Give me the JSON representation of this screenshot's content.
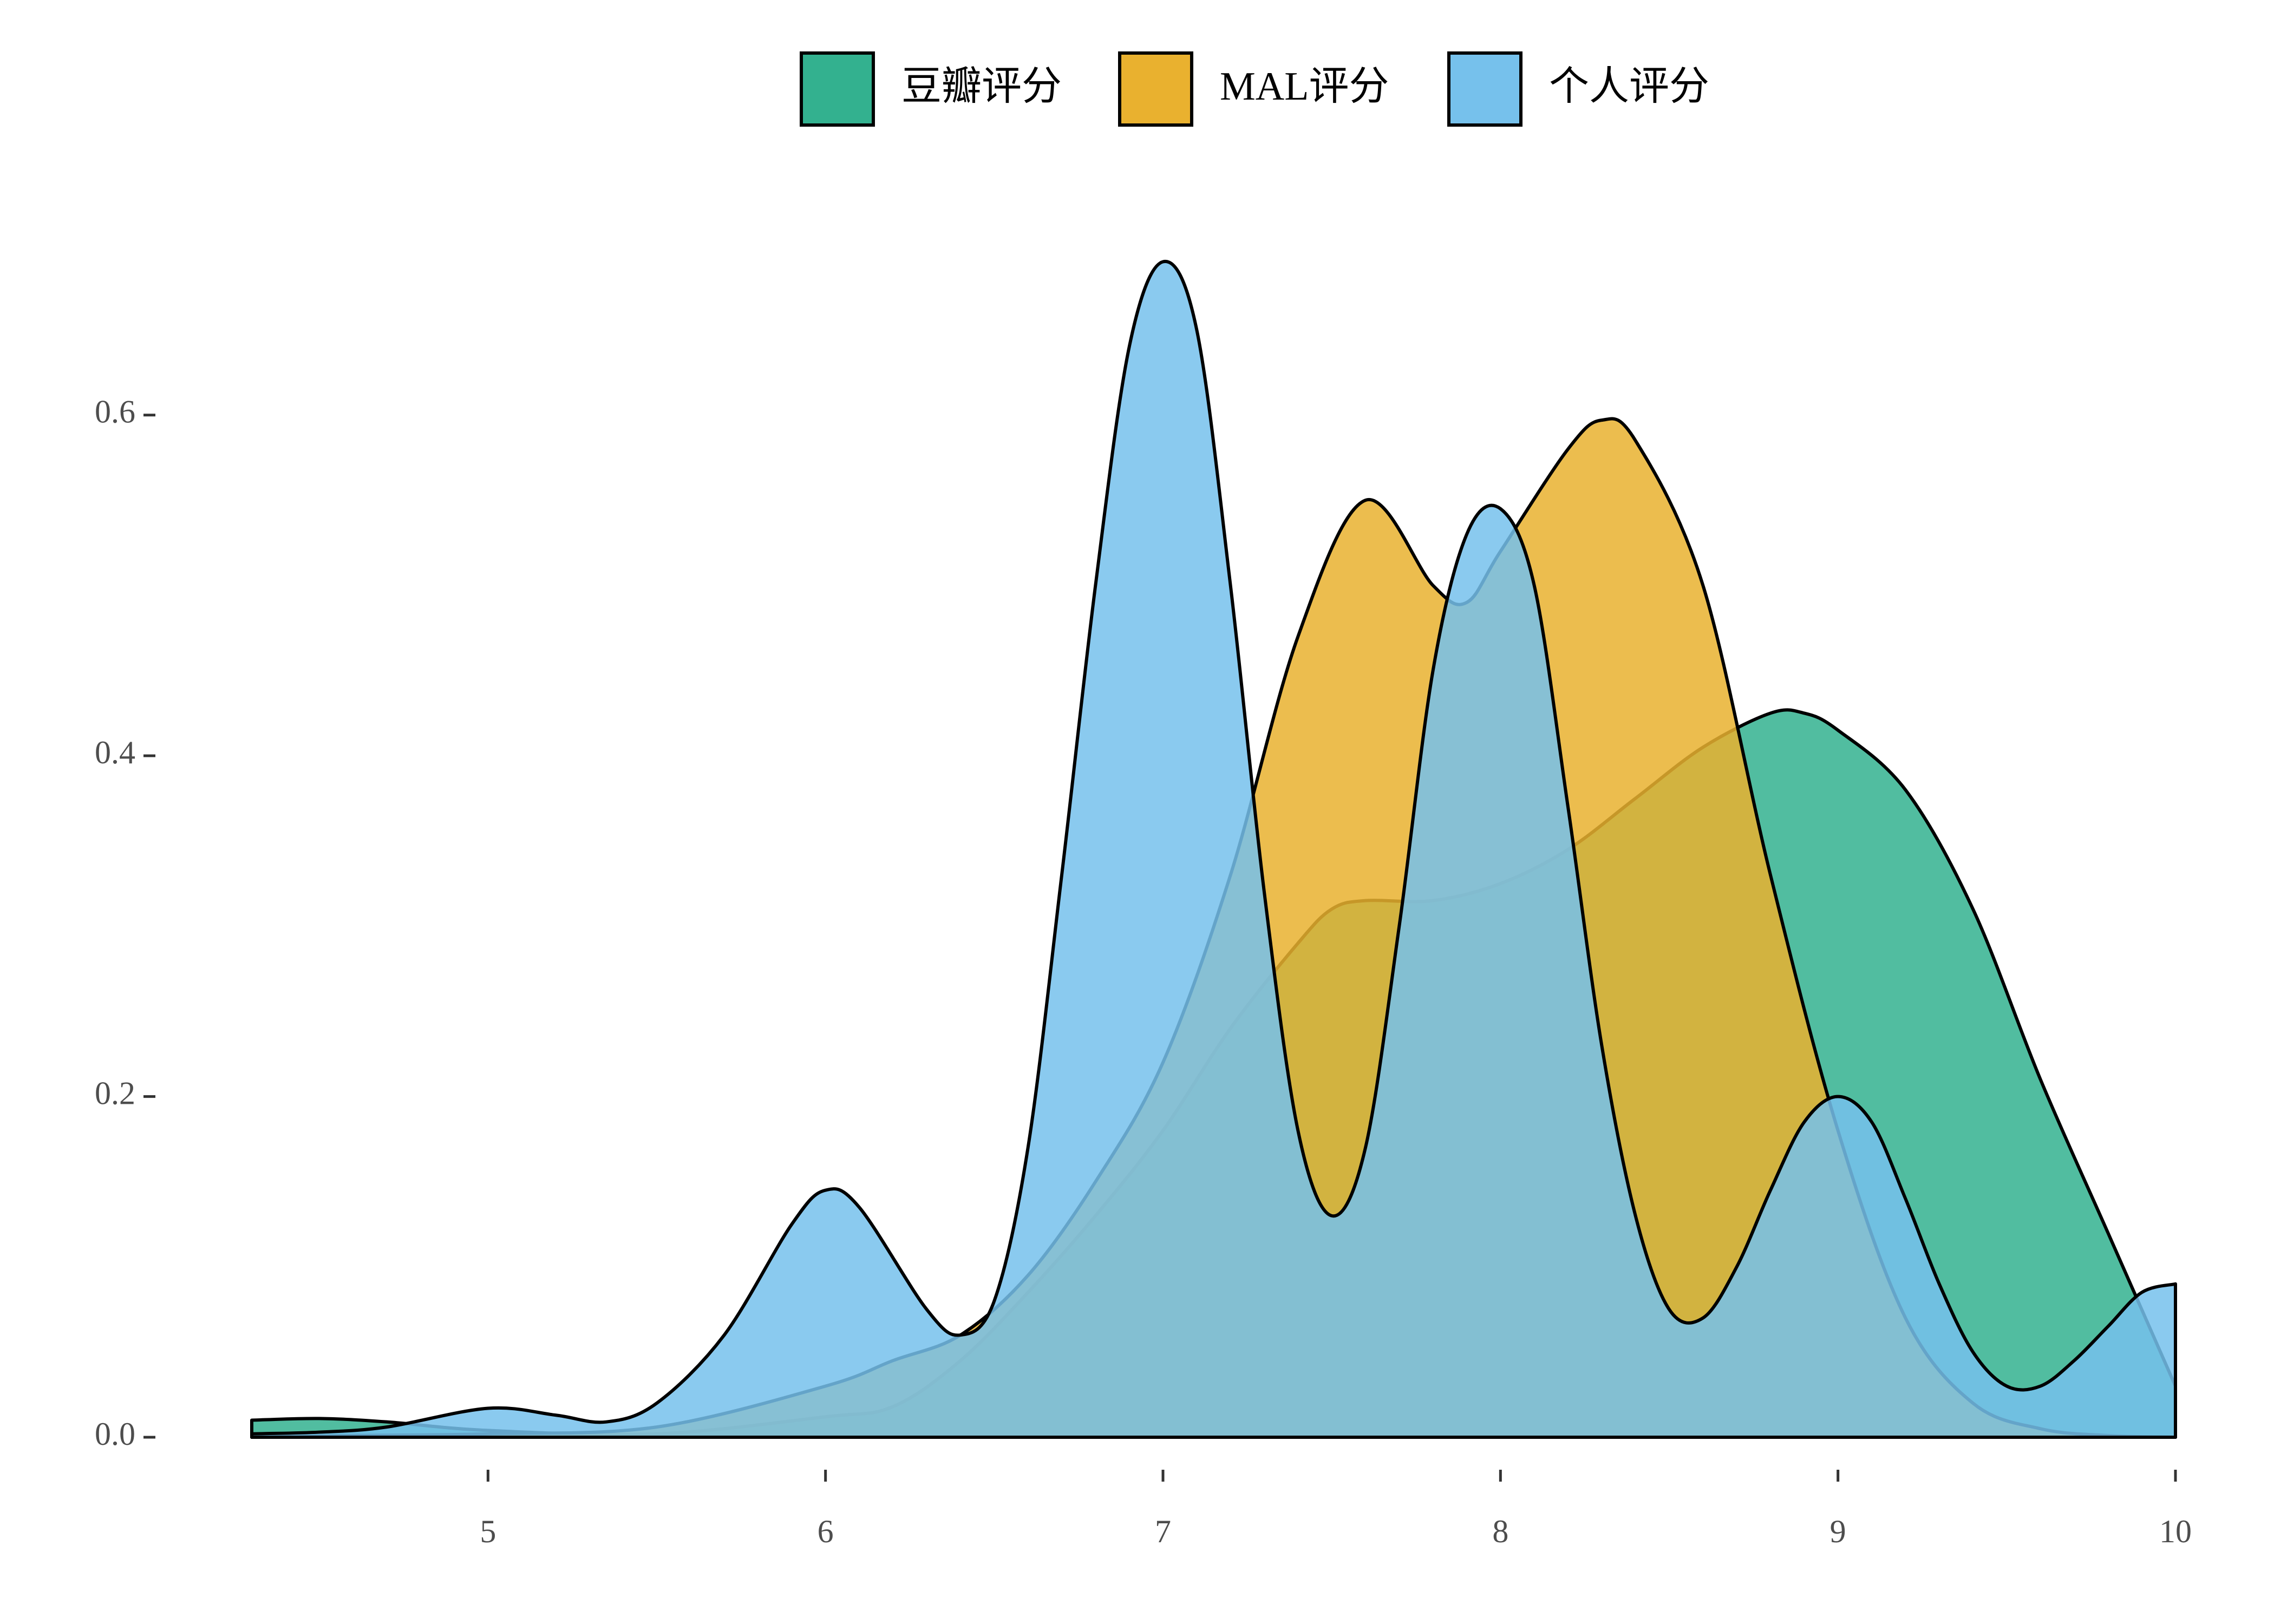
{
  "chart_data": {
    "type": "density",
    "series": [
      {
        "name": "豆瓣评分",
        "color": "#33b18f",
        "x": [
          4.3,
          4.5,
          4.7,
          5.0,
          5.5,
          6.0,
          6.2,
          6.4,
          6.6,
          6.8,
          7.0,
          7.2,
          7.4,
          7.5,
          7.6,
          7.8,
          8.0,
          8.2,
          8.4,
          8.6,
          8.8,
          8.9,
          9.0,
          9.2,
          9.4,
          9.6,
          9.8,
          10.0
        ],
        "values": [
          0.01,
          0.011,
          0.009,
          0.004,
          0.002,
          0.012,
          0.018,
          0.045,
          0.085,
          0.13,
          0.18,
          0.24,
          0.29,
          0.31,
          0.315,
          0.315,
          0.325,
          0.345,
          0.375,
          0.405,
          0.425,
          0.425,
          0.415,
          0.38,
          0.31,
          0.21,
          0.12,
          0.03
        ]
      },
      {
        "name": "MAL评分",
        "color": "#e9b12f",
        "x": [
          4.3,
          4.6,
          5.0,
          5.5,
          6.0,
          6.2,
          6.4,
          6.6,
          6.8,
          7.0,
          7.2,
          7.4,
          7.6,
          7.8,
          7.9,
          8.0,
          8.2,
          8.3,
          8.4,
          8.6,
          8.8,
          9.0,
          9.2,
          9.4,
          9.6,
          9.8,
          10.0
        ],
        "values": [
          0,
          0.001,
          0.002,
          0.006,
          0.03,
          0.045,
          0.06,
          0.095,
          0.15,
          0.22,
          0.33,
          0.47,
          0.55,
          0.5,
          0.49,
          0.52,
          0.58,
          0.597,
          0.585,
          0.5,
          0.33,
          0.18,
          0.07,
          0.02,
          0.005,
          0.001,
          0
        ]
      },
      {
        "name": "个人评分",
        "color": "#76c1ec",
        "x": [
          4.3,
          4.5,
          4.7,
          5.0,
          5.2,
          5.35,
          5.5,
          5.7,
          5.9,
          6.0,
          6.1,
          6.3,
          6.4,
          6.5,
          6.6,
          6.7,
          6.8,
          6.9,
          7.0,
          7.1,
          7.2,
          7.3,
          7.4,
          7.5,
          7.6,
          7.7,
          7.8,
          7.9,
          8.0,
          8.1,
          8.2,
          8.3,
          8.4,
          8.5,
          8.6,
          8.7,
          8.8,
          8.9,
          9.0,
          9.1,
          9.2,
          9.3,
          9.4,
          9.5,
          9.6,
          9.7,
          9.8,
          9.9,
          10.0
        ],
        "values": [
          0.002,
          0.003,
          0.006,
          0.017,
          0.013,
          0.009,
          0.02,
          0.06,
          0.125,
          0.145,
          0.135,
          0.075,
          0.06,
          0.08,
          0.17,
          0.33,
          0.5,
          0.64,
          0.69,
          0.65,
          0.5,
          0.32,
          0.18,
          0.13,
          0.17,
          0.3,
          0.45,
          0.53,
          0.545,
          0.5,
          0.37,
          0.23,
          0.13,
          0.075,
          0.07,
          0.1,
          0.145,
          0.185,
          0.2,
          0.185,
          0.14,
          0.09,
          0.05,
          0.03,
          0.03,
          0.045,
          0.065,
          0.085,
          0.09
        ]
      }
    ],
    "xlim": [
      4.3,
      10
    ],
    "xticks": [
      5,
      6,
      7,
      8,
      9,
      10
    ],
    "ylim": [
      0,
      0.7
    ],
    "yticks": [
      {
        "value": 0,
        "label": "0.0"
      },
      0.2,
      0.4,
      0.6
    ],
    "legend": "top"
  }
}
